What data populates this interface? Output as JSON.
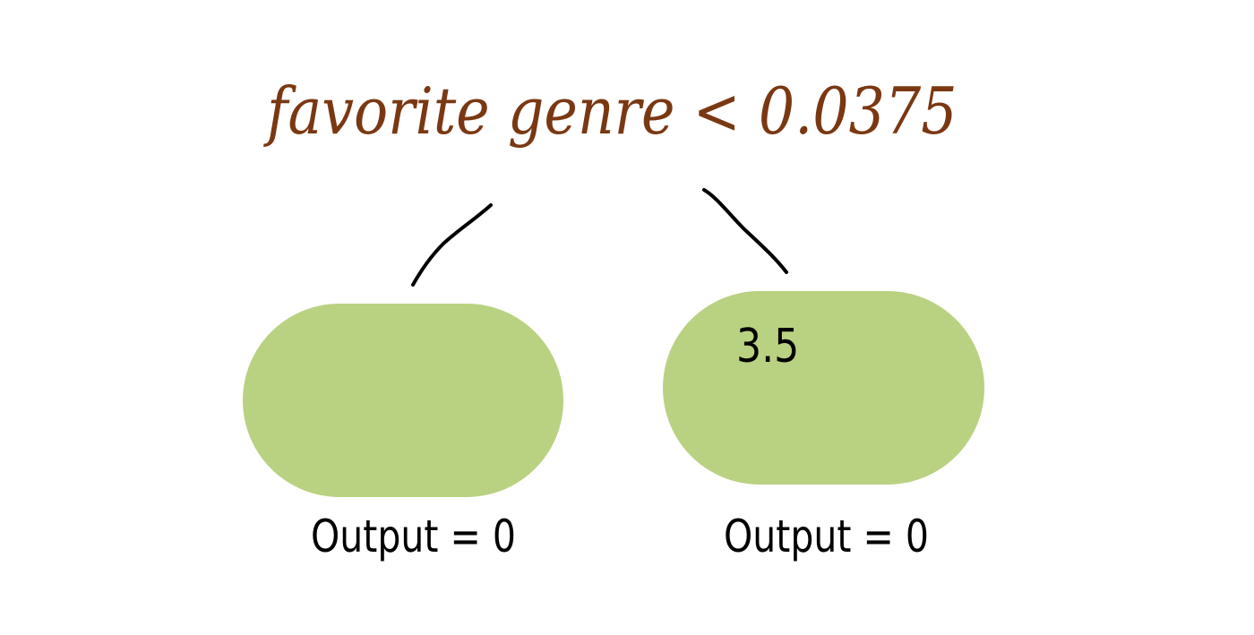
{
  "tree": {
    "root": {
      "label": "favorite genre < 0.0375",
      "color": "#7a3812"
    },
    "edge_color": "#000000",
    "leaf_color": "#b9d282",
    "left_leaf": {
      "value": "",
      "output": "Output = 0"
    },
    "right_leaf": {
      "value": "3.5",
      "output": "Output = 0"
    }
  }
}
